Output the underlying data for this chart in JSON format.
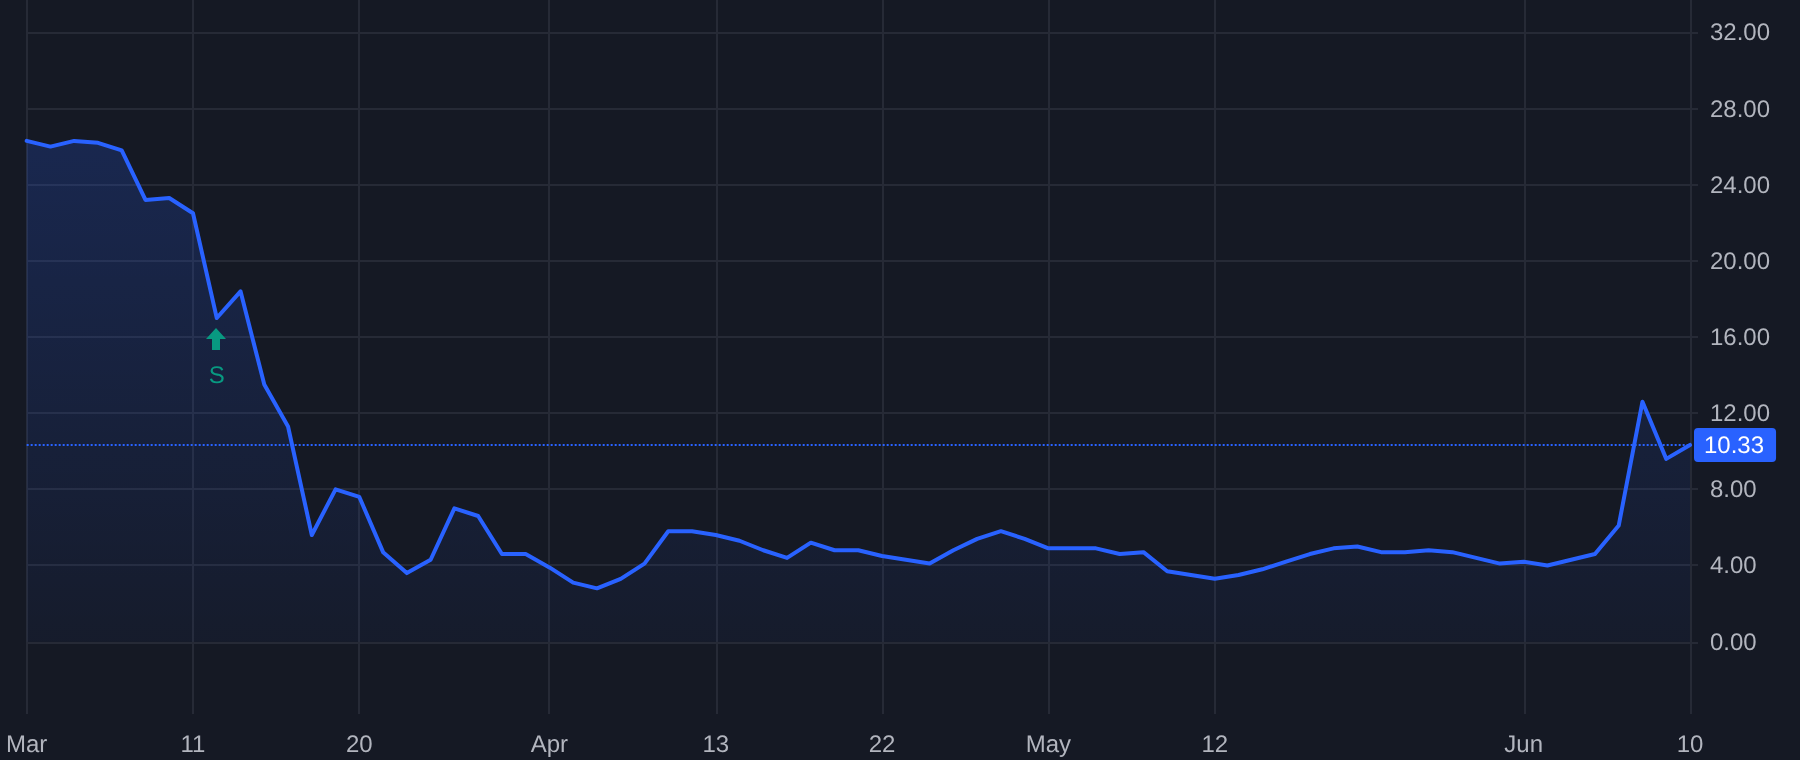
{
  "chart_data": {
    "type": "area",
    "categories": [
      "Mar",
      null,
      null,
      null,
      null,
      null,
      null,
      "11",
      null,
      null,
      null,
      null,
      null,
      null,
      "20",
      null,
      null,
      null,
      null,
      null,
      null,
      null,
      "Apr",
      null,
      null,
      null,
      null,
      null,
      null,
      "13",
      null,
      null,
      null,
      null,
      null,
      null,
      "22",
      null,
      null,
      null,
      null,
      null,
      null,
      "May",
      null,
      null,
      null,
      null,
      null,
      null,
      "12",
      null,
      null,
      null,
      null,
      null,
      null,
      null,
      null,
      null,
      null,
      null,
      null,
      "Jun",
      null,
      null,
      null,
      null,
      null,
      null,
      "10"
    ],
    "series": [
      {
        "color": "#2962ff",
        "values": [
          26.3,
          26.0,
          26.3,
          26.2,
          25.8,
          23.2,
          23.3,
          22.5,
          17.0,
          18.4,
          13.5,
          11.3,
          5.6,
          8.0,
          7.6,
          4.7,
          3.6,
          4.3,
          7.0,
          6.6,
          4.6,
          4.6,
          3.9,
          3.1,
          2.8,
          3.3,
          4.1,
          5.8,
          5.8,
          5.6,
          5.3,
          4.8,
          4.4,
          5.2,
          4.8,
          4.8,
          4.5,
          4.3,
          4.1,
          4.8,
          5.4,
          5.8,
          5.4,
          4.9,
          4.9,
          4.9,
          4.6,
          4.7,
          3.7,
          3.5,
          3.3,
          3.5,
          3.8,
          4.2,
          4.6,
          4.9,
          5.0,
          4.7,
          4.7,
          4.8,
          4.7,
          4.4,
          4.1,
          4.2,
          4.0,
          4.3,
          4.6,
          6.1,
          12.6,
          9.6,
          10.33
        ]
      }
    ],
    "ylim": [
      -3.8,
      33.7
    ],
    "yticks": [
      {
        "value": 0,
        "label": "0.00"
      },
      {
        "value": 4,
        "label": "4.00"
      },
      {
        "value": 8,
        "label": "8.00"
      },
      {
        "value": 12,
        "label": "12.00"
      },
      {
        "value": 16,
        "label": "16.00"
      },
      {
        "value": 20,
        "label": "20.00"
      },
      {
        "value": 24,
        "label": "24.00"
      },
      {
        "value": 28,
        "label": "28.00"
      },
      {
        "value": 32,
        "label": "32.00"
      }
    ],
    "ref_lines": [
      {
        "axis": "y",
        "value": 10.33,
        "label": "10.33",
        "color": "#2962ff",
        "line_style": "dotted"
      }
    ],
    "annotations": [
      {
        "text": "S",
        "y": 17.0
      }
    ],
    "grid": true,
    "marker": "none",
    "line_style": "solid"
  }
}
